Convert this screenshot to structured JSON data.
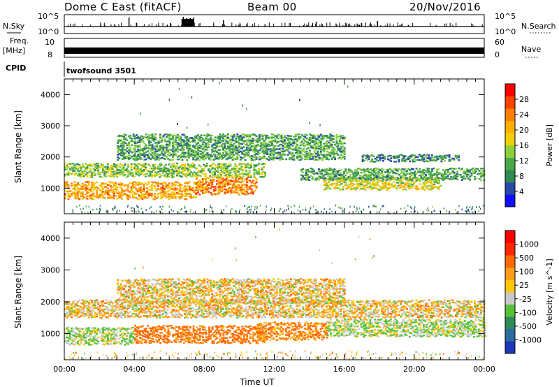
{
  "header": {
    "radar": "Dome C East (fitACF)",
    "beam": "Beam 00",
    "date": "20/Nov/2016"
  },
  "strips": {
    "nsky_label": "N.Sky",
    "nsky_ticks": [
      "10^5",
      "10^0"
    ],
    "nsearch_label": "N.Search",
    "nsearch_ticks": [
      "10^5",
      "10^0"
    ],
    "freq_label_1": "Freq.",
    "freq_label_2": "[MHz]",
    "freq_ticks": [
      "10",
      "8"
    ],
    "nave_label": "Nave",
    "nave_ticks": [
      "60",
      "0"
    ],
    "cpid_label": "CPID",
    "cpid_value": "twofsound 3501"
  },
  "colorbars": {
    "power": {
      "label": "Power [dB]",
      "ticks": [
        "28",
        "24",
        "20",
        "16",
        "12",
        "8",
        "4"
      ],
      "colors": [
        "#1010ff",
        "#2a48a8",
        "#2f8a55",
        "#4aa848",
        "#8ccf3c",
        "#f0d000",
        "#ffb000",
        "#ff8000",
        "#ff4000",
        "#ff0000"
      ]
    },
    "velocity": {
      "label": "Velocity [m s^-1]",
      "ticks": [
        "1000",
        "500",
        "100",
        "25",
        "-25",
        "-100",
        "-500",
        "-1000"
      ],
      "colors": [
        "#1f35b8",
        "#2c6aa0",
        "#2f8a5a",
        "#55c338",
        "#c8c8c8",
        "#ffc800",
        "#ff9c1a",
        "#ff6a00",
        "#ff2800",
        "#ff0000"
      ]
    }
  },
  "chart_data": [
    {
      "type": "heatmap",
      "name": "power",
      "ylabel": "Slant Range [km]",
      "xlabel": "Time UT",
      "xlim": [
        0,
        24
      ],
      "ylim": [
        180,
        4500
      ],
      "x_ticks": [
        "00:00",
        "04:00",
        "08:00",
        "12:00",
        "16:00",
        "20:00",
        "00:00"
      ],
      "y_ticks": [
        1000,
        2000,
        3000,
        4000
      ],
      "bands": [
        {
          "t0": 0.0,
          "t1": 7.5,
          "r0": 650,
          "r1": 1150,
          "level": 22
        },
        {
          "t0": 7.5,
          "t1": 11.0,
          "r0": 800,
          "r1": 1350,
          "level": 24
        },
        {
          "t0": 14.8,
          "t1": 21.5,
          "r0": 950,
          "r1": 1300,
          "level": 18
        },
        {
          "t0": 0.0,
          "t1": 11.5,
          "r0": 1350,
          "r1": 1750,
          "level": 15
        },
        {
          "t0": 13.5,
          "t1": 24.0,
          "r0": 1250,
          "r1": 1600,
          "level": 12
        },
        {
          "t0": 3.0,
          "t1": 16.0,
          "r0": 1900,
          "r1": 2700,
          "level": 12
        },
        {
          "t0": 17.0,
          "t1": 22.5,
          "r0": 1850,
          "r1": 2050,
          "level": 10
        }
      ]
    },
    {
      "type": "heatmap",
      "name": "velocity",
      "ylabel": "Slant Range [km]",
      "xlabel": "Time UT",
      "xlim": [
        0,
        24
      ],
      "ylim": [
        180,
        4500
      ],
      "x_ticks": [
        "00:00",
        "04:00",
        "08:00",
        "12:00",
        "16:00",
        "20:00",
        "00:00"
      ],
      "y_ticks": [
        1000,
        2000,
        3000,
        4000
      ],
      "bands": [
        {
          "t0": 0.0,
          "t1": 4.0,
          "r0": 650,
          "r1": 1150,
          "level": 100
        },
        {
          "t0": 4.0,
          "t1": 11.5,
          "r0": 700,
          "r1": 1200,
          "level": -150
        },
        {
          "t0": 11.0,
          "t1": 15.0,
          "r0": 800,
          "r1": 1300,
          "level": -100
        },
        {
          "t0": 15.0,
          "t1": 24.0,
          "r0": 900,
          "r1": 1400,
          "level": 100
        },
        {
          "t0": 0.0,
          "t1": 24.0,
          "r0": 1500,
          "r1": 2000,
          "level": 0
        },
        {
          "t0": 3.0,
          "t1": 16.0,
          "r0": 1950,
          "r1": 2700,
          "level": 0
        }
      ]
    }
  ]
}
